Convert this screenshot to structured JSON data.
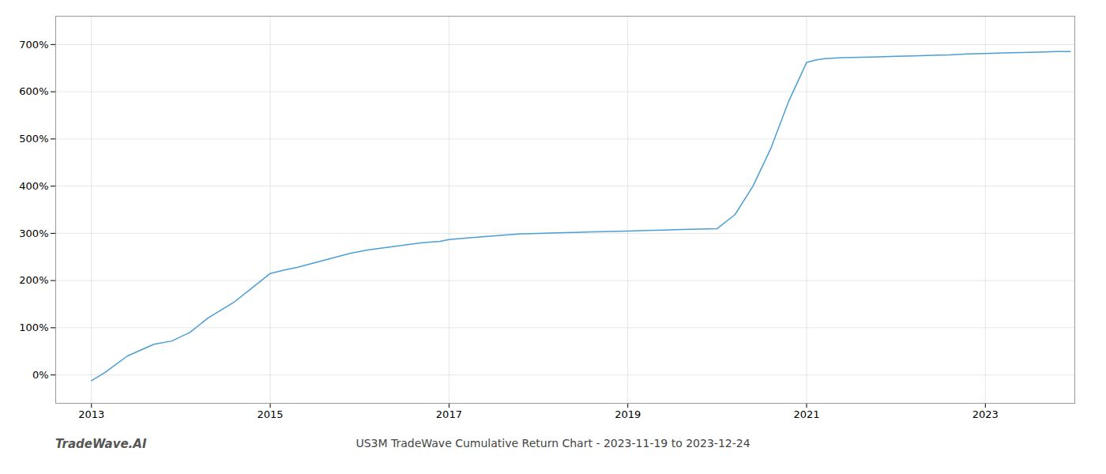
{
  "chart_data": {
    "type": "line",
    "title": "US3M TradeWave Cumulative Return Chart - 2023-11-19 to 2023-12-24",
    "annotations": [
      "TradeWave.AI"
    ],
    "color": "#4a9fd4",
    "x": [
      2013.0,
      2013.15,
      2013.4,
      2013.7,
      2013.9,
      2014.1,
      2014.3,
      2014.6,
      2014.8,
      2015.0,
      2015.15,
      2015.3,
      2015.5,
      2015.7,
      2015.9,
      2016.1,
      2016.3,
      2016.5,
      2016.7,
      2016.9,
      2017.0,
      2017.2,
      2017.4,
      2017.6,
      2017.8,
      2018.0,
      2018.2,
      2018.4,
      2018.6,
      2018.8,
      2019.0,
      2019.2,
      2019.4,
      2019.6,
      2019.8,
      2020.0,
      2020.2,
      2020.4,
      2020.6,
      2020.8,
      2021.0,
      2021.1,
      2021.2,
      2021.4,
      2021.6,
      2021.8,
      2022.0,
      2022.2,
      2022.4,
      2022.6,
      2022.8,
      2023.0,
      2023.2,
      2023.4,
      2023.6,
      2023.8,
      2023.95
    ],
    "values": [
      -12,
      5,
      40,
      65,
      72,
      90,
      120,
      155,
      185,
      215,
      222,
      228,
      238,
      248,
      258,
      265,
      270,
      275,
      280,
      283,
      287,
      290,
      293,
      296,
      299,
      300,
      301,
      302,
      303,
      304,
      305,
      306,
      307,
      308,
      309,
      310,
      340,
      400,
      480,
      580,
      662,
      667,
      670,
      672,
      673,
      674,
      675,
      676,
      677,
      678,
      680,
      681,
      682,
      683,
      684,
      685,
      685
    ],
    "xlim": [
      2012.6,
      2024.0
    ],
    "ylim": [
      -60,
      760
    ],
    "xticks": [
      2013,
      2015,
      2017,
      2019,
      2021,
      2023
    ],
    "yticks": [
      {
        "value": 0,
        "label": "0%"
      },
      {
        "value": 100,
        "label": "100%"
      },
      {
        "value": 200,
        "label": "200%"
      },
      {
        "value": 300,
        "label": "300%"
      },
      {
        "value": 400,
        "label": "400%"
      },
      {
        "value": 500,
        "label": "500%"
      },
      {
        "value": 600,
        "label": "600%"
      },
      {
        "value": 700,
        "label": "700%"
      }
    ],
    "grid": true
  }
}
